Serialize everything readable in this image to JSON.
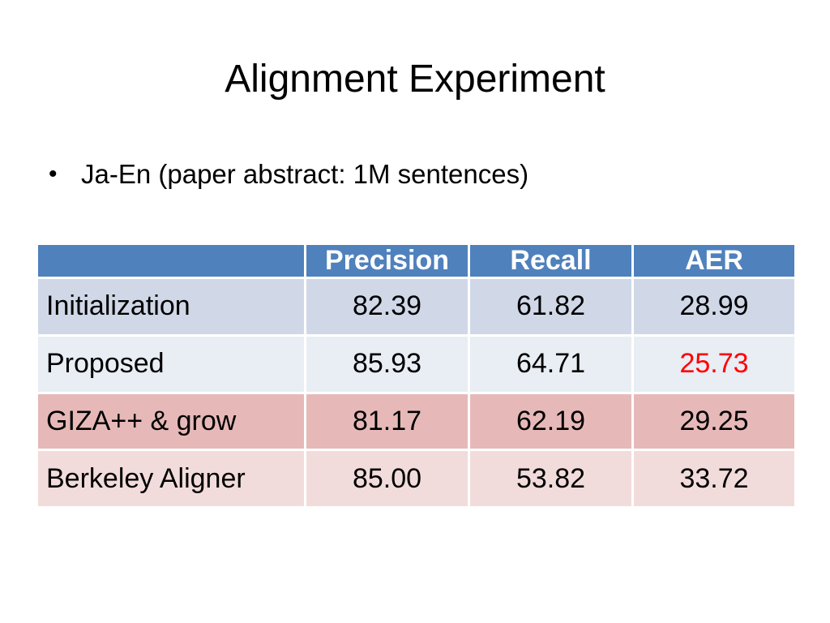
{
  "title": "Alignment Experiment",
  "bullet": "Ja-En (paper abstract: 1M sentences)",
  "table": {
    "headers": [
      "",
      "Precision",
      "Recall",
      "AER"
    ],
    "rows": [
      {
        "label": "Initialization",
        "precision": "82.39",
        "recall": "61.82",
        "aer": "28.99"
      },
      {
        "label": "Proposed",
        "precision": "85.93",
        "recall": "64.71",
        "aer": "25.73"
      },
      {
        "label": "GIZA++ & grow",
        "precision": "81.17",
        "recall": "62.19",
        "aer": "29.25"
      },
      {
        "label": "Berkeley Aligner",
        "precision": "85.00",
        "recall": "53.82",
        "aer": "33.72"
      }
    ]
  },
  "colors": {
    "header_bg": "#4f81bd",
    "row_blue_dark": "#d0d8e8",
    "row_blue_light": "#e9edf4",
    "row_red_dark": "#e6b9b8",
    "row_red_light": "#f2dcdb",
    "highlight_text": "#ff0000"
  }
}
